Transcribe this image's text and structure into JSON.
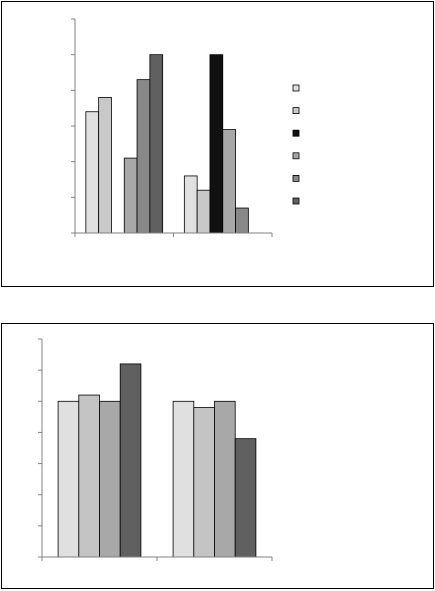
{
  "chart_data": [
    {
      "type": "bar",
      "categories": [
        null,
        null
      ],
      "ylim": [
        0,
        6
      ],
      "yticks": [
        0,
        1,
        2,
        3,
        4,
        5,
        6
      ],
      "legend": "right",
      "series": [
        {
          "color": "#e0e0e0",
          "values": [
            3.4,
            1.6
          ]
        },
        {
          "color": "#c8c8c8",
          "values": [
            3.8,
            1.2
          ]
        },
        {
          "color": "#111111",
          "values": [
            null,
            5.0
          ]
        },
        {
          "color": "#a8a8a8",
          "values": [
            2.1,
            2.9
          ]
        },
        {
          "color": "#888888",
          "values": [
            4.3,
            0.7
          ]
        },
        {
          "color": "#606060",
          "values": [
            5.0,
            null
          ]
        }
      ]
    },
    {
      "type": "bar",
      "categories": [
        null,
        null
      ],
      "ylim": [
        0,
        7
      ],
      "yticks": [
        0,
        1,
        2,
        3,
        4,
        5,
        6,
        7
      ],
      "series": [
        {
          "color": "#e0e0e0",
          "values": [
            5.0,
            5.0
          ]
        },
        {
          "color": "#c4c4c4",
          "values": [
            5.2,
            4.8
          ]
        },
        {
          "color": "#a8a8a8",
          "values": [
            5.0,
            5.0
          ]
        },
        {
          "color": "#606060",
          "values": [
            6.2,
            3.8
          ]
        }
      ]
    }
  ]
}
